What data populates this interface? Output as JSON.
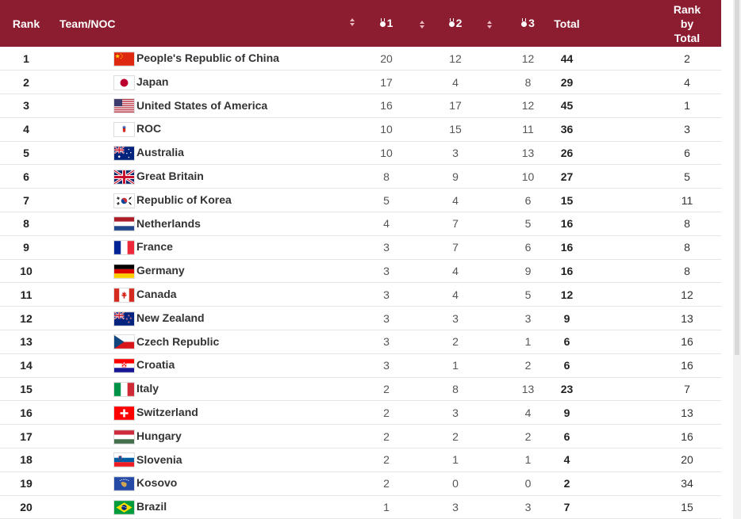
{
  "headers": {
    "rank": "Rank",
    "team": "Team/NOC",
    "gold": "1",
    "silver": "2",
    "bronze": "3",
    "total": "Total",
    "rank_by_total_line1": "Rank",
    "rank_by_total_line2": "by",
    "rank_by_total_line3": "Total"
  },
  "colors": {
    "header_bg": "#8c1d30",
    "header_text": "#ffffff"
  },
  "rows": [
    {
      "rank": "1",
      "team": "People's Republic of China",
      "flag": "china-flag-icon",
      "gold": "20",
      "silver": "12",
      "bronze": "12",
      "total": "44",
      "rank_by_total": "2"
    },
    {
      "rank": "2",
      "team": "Japan",
      "flag": "japan-flag-icon",
      "gold": "17",
      "silver": "4",
      "bronze": "8",
      "total": "29",
      "rank_by_total": "4"
    },
    {
      "rank": "3",
      "team": "United States of America",
      "flag": "usa-flag-icon",
      "gold": "16",
      "silver": "17",
      "bronze": "12",
      "total": "45",
      "rank_by_total": "1"
    },
    {
      "rank": "4",
      "team": "ROC",
      "flag": "roc-flag-icon",
      "gold": "10",
      "silver": "15",
      "bronze": "11",
      "total": "36",
      "rank_by_total": "3"
    },
    {
      "rank": "5",
      "team": "Australia",
      "flag": "australia-flag-icon",
      "gold": "10",
      "silver": "3",
      "bronze": "13",
      "total": "26",
      "rank_by_total": "6"
    },
    {
      "rank": "6",
      "team": "Great Britain",
      "flag": "great-britain-flag-icon",
      "gold": "8",
      "silver": "9",
      "bronze": "10",
      "total": "27",
      "rank_by_total": "5"
    },
    {
      "rank": "7",
      "team": "Republic of Korea",
      "flag": "korea-flag-icon",
      "gold": "5",
      "silver": "4",
      "bronze": "6",
      "total": "15",
      "rank_by_total": "11"
    },
    {
      "rank": "8",
      "team": "Netherlands",
      "flag": "netherlands-flag-icon",
      "gold": "4",
      "silver": "7",
      "bronze": "5",
      "total": "16",
      "rank_by_total": "8"
    },
    {
      "rank": "9",
      "team": "France",
      "flag": "france-flag-icon",
      "gold": "3",
      "silver": "7",
      "bronze": "6",
      "total": "16",
      "rank_by_total": "8"
    },
    {
      "rank": "10",
      "team": "Germany",
      "flag": "germany-flag-icon",
      "gold": "3",
      "silver": "4",
      "bronze": "9",
      "total": "16",
      "rank_by_total": "8"
    },
    {
      "rank": "11",
      "team": "Canada",
      "flag": "canada-flag-icon",
      "gold": "3",
      "silver": "4",
      "bronze": "5",
      "total": "12",
      "rank_by_total": "12"
    },
    {
      "rank": "12",
      "team": "New Zealand",
      "flag": "new-zealand-flag-icon",
      "gold": "3",
      "silver": "3",
      "bronze": "3",
      "total": "9",
      "rank_by_total": "13"
    },
    {
      "rank": "13",
      "team": "Czech Republic",
      "flag": "czech-flag-icon",
      "gold": "3",
      "silver": "2",
      "bronze": "1",
      "total": "6",
      "rank_by_total": "16"
    },
    {
      "rank": "14",
      "team": "Croatia",
      "flag": "croatia-flag-icon",
      "gold": "3",
      "silver": "1",
      "bronze": "2",
      "total": "6",
      "rank_by_total": "16"
    },
    {
      "rank": "15",
      "team": "Italy",
      "flag": "italy-flag-icon",
      "gold": "2",
      "silver": "8",
      "bronze": "13",
      "total": "23",
      "rank_by_total": "7"
    },
    {
      "rank": "16",
      "team": "Switzerland",
      "flag": "switzerland-flag-icon",
      "gold": "2",
      "silver": "3",
      "bronze": "4",
      "total": "9",
      "rank_by_total": "13"
    },
    {
      "rank": "17",
      "team": "Hungary",
      "flag": "hungary-flag-icon",
      "gold": "2",
      "silver": "2",
      "bronze": "2",
      "total": "6",
      "rank_by_total": "16"
    },
    {
      "rank": "18",
      "team": "Slovenia",
      "flag": "slovenia-flag-icon",
      "gold": "2",
      "silver": "1",
      "bronze": "1",
      "total": "4",
      "rank_by_total": "20"
    },
    {
      "rank": "19",
      "team": "Kosovo",
      "flag": "kosovo-flag-icon",
      "gold": "2",
      "silver": "0",
      "bronze": "0",
      "total": "2",
      "rank_by_total": "34"
    },
    {
      "rank": "20",
      "team": "Brazil",
      "flag": "brazil-flag-icon",
      "gold": "1",
      "silver": "3",
      "bronze": "3",
      "total": "7",
      "rank_by_total": "15"
    }
  ]
}
